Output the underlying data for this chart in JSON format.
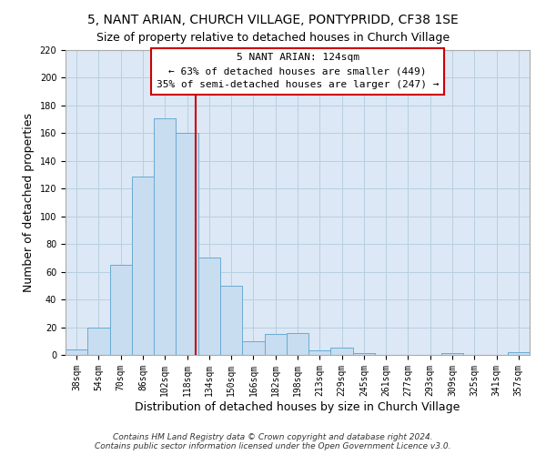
{
  "title": "5, NANT ARIAN, CHURCH VILLAGE, PONTYPRIDD, CF38 1SE",
  "subtitle": "Size of property relative to detached houses in Church Village",
  "xlabel": "Distribution of detached houses by size in Church Village",
  "ylabel": "Number of detached properties",
  "footer_lines": [
    "Contains HM Land Registry data © Crown copyright and database right 2024.",
    "Contains public sector information licensed under the Open Government Licence v3.0."
  ],
  "bar_labels": [
    "38sqm",
    "54sqm",
    "70sqm",
    "86sqm",
    "102sqm",
    "118sqm",
    "134sqm",
    "150sqm",
    "166sqm",
    "182sqm",
    "198sqm",
    "213sqm",
    "229sqm",
    "245sqm",
    "261sqm",
    "277sqm",
    "293sqm",
    "309sqm",
    "325sqm",
    "341sqm",
    "357sqm"
  ],
  "bar_values": [
    4,
    20,
    65,
    129,
    171,
    160,
    70,
    50,
    10,
    15,
    16,
    3,
    5,
    1,
    0,
    0,
    0,
    1,
    0,
    0,
    2
  ],
  "bar_color": "#c8ddf0",
  "bar_edge_color": "#6aaad4",
  "ylim": [
    0,
    220
  ],
  "yticks": [
    0,
    20,
    40,
    60,
    80,
    100,
    120,
    140,
    160,
    180,
    200,
    220
  ],
  "property_line_label": "5 NANT ARIAN: 124sqm",
  "annotation_line1": "← 63% of detached houses are smaller (449)",
  "annotation_line2": "35% of semi-detached houses are larger (247) →",
  "annotation_box_color": "#ffffff",
  "annotation_box_edge_color": "#cc0000",
  "red_line_color": "#cc0000",
  "background_color": "#ffffff",
  "plot_bg_color": "#dce8f5",
  "grid_color": "#b8cfe0",
  "title_fontsize": 10,
  "subtitle_fontsize": 9,
  "axis_label_fontsize": 9,
  "tick_fontsize": 7,
  "annotation_fontsize": 8
}
